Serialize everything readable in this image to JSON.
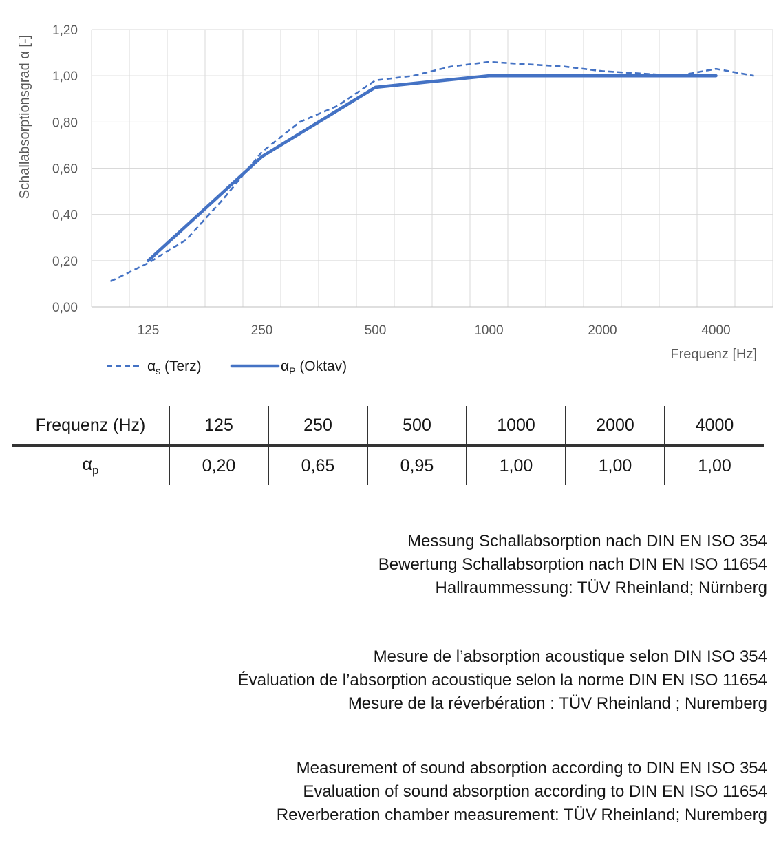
{
  "chart_data": {
    "type": "line",
    "title": "",
    "xlabel": "Frequenz [Hz]",
    "ylabel": "Schallabsorptionsgrad α [-]",
    "x_scale": "logarithmic (third-octave categories)",
    "grid": true,
    "legend_position": "bottom-left",
    "ylim": [
      0,
      1.2
    ],
    "y_ticks": [
      "0,00",
      "0,20",
      "0,40",
      "0,60",
      "0,80",
      "1,00",
      "1,20"
    ],
    "x_categories": [
      100,
      125,
      160,
      200,
      250,
      315,
      400,
      500,
      630,
      800,
      1000,
      1250,
      1600,
      2000,
      2500,
      3150,
      4000,
      5000
    ],
    "x_tick_labels": [
      "125",
      "250",
      "500",
      "1000",
      "2000",
      "4000"
    ],
    "series": [
      {
        "name": "αs (Terz)",
        "style": "dashed",
        "color": "#4472C4",
        "x": [
          100,
          125,
          160,
          200,
          250,
          315,
          400,
          500,
          630,
          800,
          1000,
          1250,
          1600,
          2000,
          2500,
          3150,
          4000,
          5000
        ],
        "values": [
          0.11,
          0.19,
          0.29,
          0.47,
          0.67,
          0.8,
          0.87,
          0.98,
          1.0,
          1.04,
          1.06,
          1.05,
          1.04,
          1.02,
          1.01,
          1.0,
          1.03,
          1.0
        ]
      },
      {
        "name": "αP (Oktav)",
        "style": "solid",
        "color": "#4472C4",
        "x": [
          125,
          250,
          500,
          1000,
          2000,
          4000
        ],
        "values": [
          0.2,
          0.65,
          0.95,
          1.0,
          1.0,
          1.0
        ]
      }
    ]
  },
  "legend": {
    "s": {
      "sym": "α",
      "sub": "s",
      "rest": " (Terz)"
    },
    "p": {
      "sym": "α",
      "sub": "P",
      "rest": " (Oktav)"
    }
  },
  "table": {
    "header_label": "Frequenz (Hz)",
    "frequencies": [
      "125",
      "250",
      "500",
      "1000",
      "2000",
      "4000"
    ],
    "row_label": {
      "sym": "α",
      "sub": "p"
    },
    "values": [
      "0,20",
      "0,65",
      "0,95",
      "1,00",
      "1,00",
      "1,00"
    ]
  },
  "notes": {
    "de": [
      "Messung Schallabsorption nach DIN EN ISO 354",
      "Bewertung Schallabsorption nach DIN EN ISO 11654",
      "Hallraummessung: TÜV Rheinland; Nürnberg"
    ],
    "fr": [
      "Mesure de l’absorption acoustique selon DIN ISO 354",
      "Évaluation de l’absorption acoustique selon la norme DIN EN ISO 11654",
      "Mesure de la réverbération : TÜV Rheinland ; Nuremberg"
    ],
    "en": [
      "Measurement of sound absorption according to DIN EN ISO 354",
      "Evaluation of sound absorption according to DIN EN ISO 11654",
      "Reverberation chamber measurement: TÜV Rheinland; Nuremberg"
    ]
  },
  "colors": {
    "line_blue": "#4472C4",
    "grid": "#D9D9D9",
    "axis_line": "#BFBFBF",
    "axis_text": "#595959",
    "text": "#161616"
  }
}
